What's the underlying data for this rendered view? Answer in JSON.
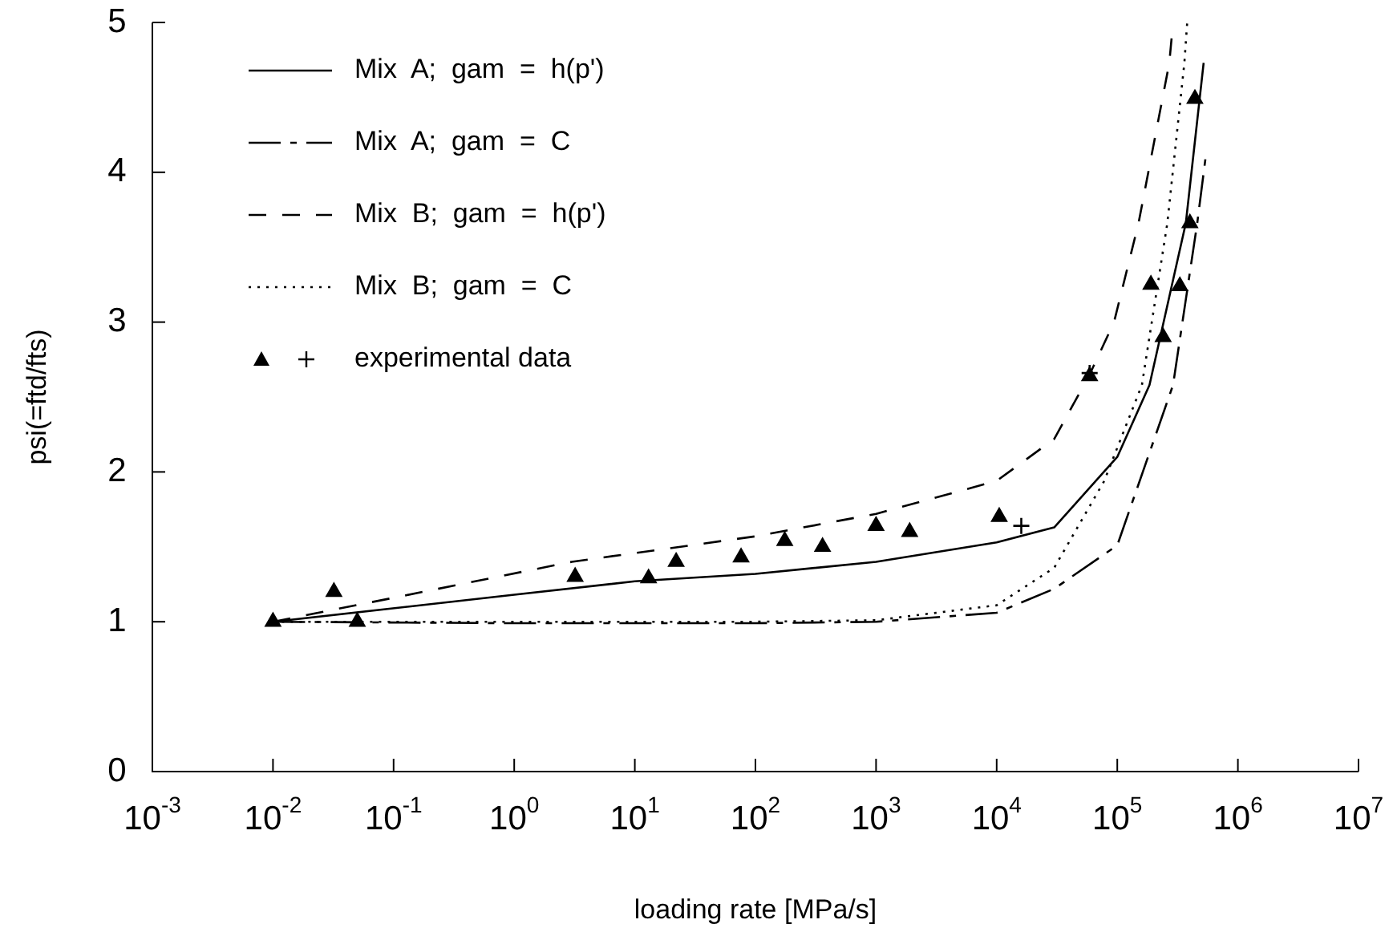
{
  "chart_data": {
    "type": "line",
    "xlabel": "loading rate [MPa/s]",
    "ylabel": "psi(=ftd/fts)",
    "log": "x",
    "xlim": [
      0.001,
      10000000
    ],
    "ylim": [
      0,
      5
    ],
    "xticks": [
      {
        "value": 0.001,
        "label": "10$^{-3}$"
      },
      {
        "value": 0.01,
        "label": "10$^{-2}$"
      },
      {
        "value": 0.1,
        "label": "10$^{-1}$"
      },
      {
        "value": 1,
        "label": "10$^{0}$"
      },
      {
        "value": 10,
        "label": "10$^{1}$"
      },
      {
        "value": 100,
        "label": "10$^{2}$"
      },
      {
        "value": 1000,
        "label": "10$^{3}$"
      },
      {
        "value": 10000,
        "label": "10$^{4}$"
      },
      {
        "value": 100000,
        "label": "10$^{5}$"
      },
      {
        "value": 1000000,
        "label": "10$^{6}$"
      },
      {
        "value": 10000000,
        "label": "10$^{7}$"
      }
    ],
    "yticks": [
      0,
      1,
      2,
      3,
      4,
      5
    ],
    "grid": false,
    "legend": "top left",
    "series": [
      {
        "name": "Mix  A;  gam  =  h(p')",
        "line_style": "solid",
        "marker": "none",
        "color": "#000000",
        "x": [
          0.01,
          1,
          10,
          100,
          1000,
          10000,
          30000,
          100000,
          185000,
          370000,
          520000
        ],
        "values": [
          1.0,
          1.18,
          1.27,
          1.32,
          1.4,
          1.53,
          1.63,
          2.1,
          2.58,
          3.66,
          4.73
        ]
      },
      {
        "name": "Mix  A;  gam  =  C",
        "line_style": "dashed",
        "marker": "none",
        "color": "#000000",
        "x": [
          0.01,
          1,
          100,
          1000,
          10000,
          30000,
          100000,
          290000,
          460000,
          540000
        ],
        "values": [
          1.0,
          0.99,
          0.99,
          1.0,
          1.06,
          1.22,
          1.51,
          2.58,
          3.66,
          4.1
        ]
      },
      {
        "name": "Mix  B;  gam  =  h(p')",
        "line_style": "dashed",
        "marker": "none",
        "color": "#000000",
        "x": [
          0.01,
          0.1,
          3,
          100,
          1000,
          10000,
          30000,
          59000,
          94000,
          150000,
          270000,
          290000
        ],
        "values": [
          1.0,
          1.16,
          1.4,
          1.57,
          1.72,
          1.94,
          2.22,
          2.65,
          3.0,
          3.66,
          4.73,
          5.0
        ]
      },
      {
        "name": "Mix  B;  gam  =  C",
        "line_style": "dotted",
        "marker": "none",
        "color": "#000000",
        "x": [
          0.01,
          1,
          100,
          1000,
          10000,
          30000,
          78000,
          160000,
          260000,
          360000,
          380000
        ],
        "values": [
          1.0,
          1.0,
          1.0,
          1.01,
          1.11,
          1.36,
          1.94,
          2.58,
          3.66,
          4.73,
          5.0
        ]
      },
      {
        "name": "experimental data",
        "type": "scatter",
        "marker": "triangle",
        "color": "#000000",
        "x": [
          0.01,
          0.032,
          0.05,
          3.2,
          13,
          22,
          76,
          175,
          360,
          1000,
          1900,
          10500,
          59000,
          190000,
          240000,
          330000,
          400000,
          440000
        ],
        "values": [
          1.0,
          1.2,
          1.0,
          1.3,
          1.29,
          1.4,
          1.43,
          1.54,
          1.5,
          1.64,
          1.6,
          1.7,
          2.64,
          3.25,
          2.9,
          3.24,
          3.66,
          4.49
        ]
      },
      {
        "type": "scatter",
        "marker": "cross",
        "color": "#000000",
        "x": [
          16000,
          59000
        ],
        "values": [
          1.64,
          2.66
        ]
      }
    ]
  }
}
